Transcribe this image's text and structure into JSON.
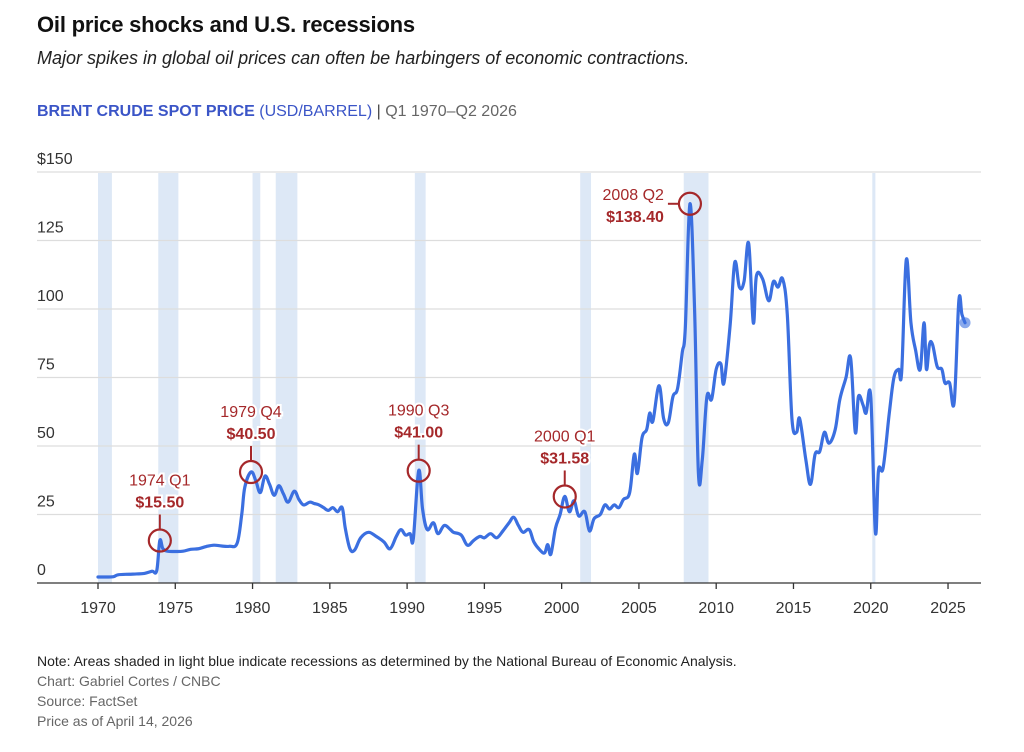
{
  "header": {
    "title": "Oil price shocks and U.S. recessions",
    "subtitle": "Major spikes in global oil prices can often be harbingers of economic contractions.",
    "series_name": "BRENT CRUDE SPOT PRICE",
    "series_unit": "(USD/BARREL)",
    "separator": "|",
    "range": "Q1 1970–Q2 2026"
  },
  "footer": {
    "note": "Note: Areas shaded in light blue indicate recessions as determined by the National Bureau of Economic Analysis.",
    "credit": "Chart: Gabriel Cortes / CNBC",
    "source": "Source: FactSet",
    "as_of": "Price as of April 14, 2026"
  },
  "colors": {
    "line": "#3b6fe0",
    "recession": "#dde8f6",
    "annotation": "#a5282a",
    "grid": "#dddddd",
    "axis": "#333333"
  },
  "chart_data": {
    "type": "line",
    "title": "Oil price shocks and U.S. recessions",
    "subtitle": "Major spikes in global oil prices can often be harbingers of economic contractions.",
    "xlabel": "",
    "ylabel": "BRENT CRUDE SPOT PRICE (USD/BARREL)",
    "xlim": [
      1970,
      2026.5
    ],
    "ylim": [
      0,
      150
    ],
    "grid": true,
    "x_ticks": [
      1970,
      1975,
      1980,
      1985,
      1990,
      1995,
      2000,
      2005,
      2010,
      2015,
      2020,
      2025
    ],
    "x_tick_labels": [
      "1970",
      "1975",
      "1980",
      "1985",
      "1990",
      "1995",
      "2000",
      "2005",
      "2010",
      "2015",
      "2020",
      "2025"
    ],
    "y_ticks": [
      0,
      25,
      50,
      75,
      100,
      125,
      150
    ],
    "y_tick_labels": [
      "0",
      "25",
      "50",
      "75",
      "100",
      "125",
      "$150"
    ],
    "recessions": [
      [
        1970.0,
        1970.9
      ],
      [
        1973.9,
        1975.2
      ],
      [
        1980.0,
        1980.5
      ],
      [
        1981.5,
        1982.9
      ],
      [
        1990.5,
        1991.2
      ],
      [
        2001.2,
        2001.9
      ],
      [
        2007.9,
        2009.5
      ],
      [
        2020.1,
        2020.3
      ]
    ],
    "series": [
      {
        "name": "Brent crude spot price",
        "points": [
          [
            1970.0,
            2.2
          ],
          [
            1970.5,
            2.2
          ],
          [
            1971.0,
            2.3
          ],
          [
            1971.3,
            3.0
          ],
          [
            1972.0,
            3.2
          ],
          [
            1972.5,
            3.3
          ],
          [
            1973.0,
            3.5
          ],
          [
            1973.5,
            4.3
          ],
          [
            1973.8,
            4.5
          ],
          [
            1974.0,
            15.5
          ],
          [
            1974.2,
            12.5
          ],
          [
            1974.5,
            11.6
          ],
          [
            1975.0,
            11.5
          ],
          [
            1975.5,
            11.6
          ],
          [
            1976.0,
            12.3
          ],
          [
            1976.5,
            12.5
          ],
          [
            1977.0,
            13.3
          ],
          [
            1977.5,
            13.8
          ],
          [
            1978.0,
            13.5
          ],
          [
            1978.5,
            13.4
          ],
          [
            1979.0,
            14.5
          ],
          [
            1979.3,
            25.0
          ],
          [
            1979.5,
            35.0
          ],
          [
            1979.9,
            40.5
          ],
          [
            1980.2,
            37.5
          ],
          [
            1980.5,
            33.0
          ],
          [
            1980.8,
            39.0
          ],
          [
            1981.1,
            36.0
          ],
          [
            1981.4,
            32.0
          ],
          [
            1981.7,
            35.5
          ],
          [
            1982.0,
            32.5
          ],
          [
            1982.3,
            29.5
          ],
          [
            1982.7,
            33.5
          ],
          [
            1983.0,
            30.5
          ],
          [
            1983.3,
            28.5
          ],
          [
            1983.7,
            29.5
          ],
          [
            1984.0,
            29.0
          ],
          [
            1984.3,
            28.5
          ],
          [
            1984.6,
            27.5
          ],
          [
            1984.9,
            26.5
          ],
          [
            1985.2,
            27.5
          ],
          [
            1985.5,
            26.0
          ],
          [
            1985.8,
            27.5
          ],
          [
            1986.0,
            20.0
          ],
          [
            1986.3,
            12.5
          ],
          [
            1986.6,
            12.0
          ],
          [
            1987.0,
            16.5
          ],
          [
            1987.5,
            18.5
          ],
          [
            1988.0,
            17.0
          ],
          [
            1988.5,
            15.0
          ],
          [
            1988.9,
            12.5
          ],
          [
            1989.3,
            17.0
          ],
          [
            1989.6,
            19.5
          ],
          [
            1989.9,
            17.5
          ],
          [
            1990.2,
            18.0
          ],
          [
            1990.4,
            16.0
          ],
          [
            1990.75,
            41.0
          ],
          [
            1991.0,
            27.0
          ],
          [
            1991.3,
            19.5
          ],
          [
            1991.7,
            22.0
          ],
          [
            1992.0,
            18.0
          ],
          [
            1992.4,
            21.0
          ],
          [
            1992.8,
            19.5
          ],
          [
            1993.0,
            18.5
          ],
          [
            1993.5,
            17.5
          ],
          [
            1993.9,
            13.8
          ],
          [
            1994.3,
            15.5
          ],
          [
            1994.7,
            17.0
          ],
          [
            1995.0,
            16.5
          ],
          [
            1995.4,
            18.0
          ],
          [
            1995.8,
            16.5
          ],
          [
            1996.2,
            19.0
          ],
          [
            1996.6,
            22.0
          ],
          [
            1996.9,
            24.0
          ],
          [
            1997.2,
            21.0
          ],
          [
            1997.5,
            18.5
          ],
          [
            1997.9,
            19.5
          ],
          [
            1998.2,
            15.0
          ],
          [
            1998.6,
            12.0
          ],
          [
            1998.9,
            11.0
          ],
          [
            1999.1,
            14.0
          ],
          [
            1999.3,
            10.5
          ],
          [
            1999.6,
            20.0
          ],
          [
            1999.9,
            25.0
          ],
          [
            2000.2,
            31.6
          ],
          [
            2000.5,
            26.0
          ],
          [
            2000.8,
            30.0
          ],
          [
            2001.1,
            24.5
          ],
          [
            2001.5,
            26.0
          ],
          [
            2001.8,
            19.0
          ],
          [
            2002.1,
            23.5
          ],
          [
            2002.5,
            25.0
          ],
          [
            2002.8,
            28.5
          ],
          [
            2003.1,
            27.0
          ],
          [
            2003.4,
            28.5
          ],
          [
            2003.7,
            27.5
          ],
          [
            2004.0,
            30.5
          ],
          [
            2004.4,
            33.0
          ],
          [
            2004.7,
            47.0
          ],
          [
            2004.9,
            40.0
          ],
          [
            2005.2,
            53.0
          ],
          [
            2005.5,
            56.0
          ],
          [
            2005.7,
            62.0
          ],
          [
            2005.9,
            59.0
          ],
          [
            2006.3,
            72.0
          ],
          [
            2006.6,
            60.0
          ],
          [
            2006.9,
            58.5
          ],
          [
            2007.2,
            68.0
          ],
          [
            2007.5,
            71.0
          ],
          [
            2007.8,
            84.0
          ],
          [
            2008.0,
            93.0
          ],
          [
            2008.3,
            138.4
          ],
          [
            2008.6,
            100.0
          ],
          [
            2008.85,
            40.0
          ],
          [
            2009.1,
            45.0
          ],
          [
            2009.4,
            68.0
          ],
          [
            2009.7,
            67.0
          ],
          [
            2010.0,
            78.0
          ],
          [
            2010.3,
            80.0
          ],
          [
            2010.5,
            73.0
          ],
          [
            2010.9,
            94.0
          ],
          [
            2011.2,
            117.0
          ],
          [
            2011.5,
            108.0
          ],
          [
            2011.8,
            110.0
          ],
          [
            2012.1,
            124.0
          ],
          [
            2012.4,
            95.0
          ],
          [
            2012.6,
            112.0
          ],
          [
            2013.0,
            111.0
          ],
          [
            2013.4,
            103.0
          ],
          [
            2013.7,
            110.0
          ],
          [
            2014.0,
            108.0
          ],
          [
            2014.3,
            111.0
          ],
          [
            2014.6,
            98.0
          ],
          [
            2014.9,
            60.0
          ],
          [
            2015.2,
            55.0
          ],
          [
            2015.4,
            60.0
          ],
          [
            2015.8,
            45.0
          ],
          [
            2016.1,
            36.0
          ],
          [
            2016.4,
            47.0
          ],
          [
            2016.7,
            48.0
          ],
          [
            2017.0,
            55.0
          ],
          [
            2017.3,
            51.0
          ],
          [
            2017.7,
            56.0
          ],
          [
            2018.0,
            67.0
          ],
          [
            2018.4,
            75.0
          ],
          [
            2018.7,
            82.0
          ],
          [
            2019.0,
            55.0
          ],
          [
            2019.2,
            68.0
          ],
          [
            2019.5,
            65.0
          ],
          [
            2019.7,
            62.0
          ],
          [
            2020.0,
            68.0
          ],
          [
            2020.3,
            18.5
          ],
          [
            2020.5,
            41.0
          ],
          [
            2020.8,
            42.0
          ],
          [
            2021.2,
            62.0
          ],
          [
            2021.5,
            75.0
          ],
          [
            2021.8,
            78.0
          ],
          [
            2022.0,
            77.0
          ],
          [
            2022.3,
            118.0
          ],
          [
            2022.6,
            95.0
          ],
          [
            2022.9,
            85.0
          ],
          [
            2023.2,
            78.0
          ],
          [
            2023.45,
            95.0
          ],
          [
            2023.6,
            78.0
          ],
          [
            2023.8,
            87.0
          ],
          [
            2024.0,
            87.0
          ],
          [
            2024.3,
            79.0
          ],
          [
            2024.6,
            78.0
          ],
          [
            2024.8,
            73.0
          ],
          [
            2025.1,
            73.0
          ],
          [
            2025.4,
            66.0
          ],
          [
            2025.7,
            103.0
          ],
          [
            2025.9,
            98.0
          ],
          [
            2026.1,
            95.0
          ]
        ]
      }
    ],
    "latest_point": [
      2026.1,
      95.0
    ],
    "annotations": [
      {
        "period": "1974 Q1",
        "value": "$15.50",
        "x": 1974.0,
        "y": 15.5,
        "label_side": "above"
      },
      {
        "period": "1979 Q4",
        "value": "$40.50",
        "x": 1979.9,
        "y": 40.5,
        "label_side": "above"
      },
      {
        "period": "1990 Q3",
        "value": "$41.00",
        "x": 1990.75,
        "y": 41.0,
        "label_side": "above"
      },
      {
        "period": "2000 Q1",
        "value": "$31.58",
        "x": 2000.2,
        "y": 31.58,
        "label_side": "above"
      },
      {
        "period": "2008 Q2",
        "value": "$138.40",
        "x": 2008.3,
        "y": 138.4,
        "label_side": "left"
      }
    ]
  }
}
